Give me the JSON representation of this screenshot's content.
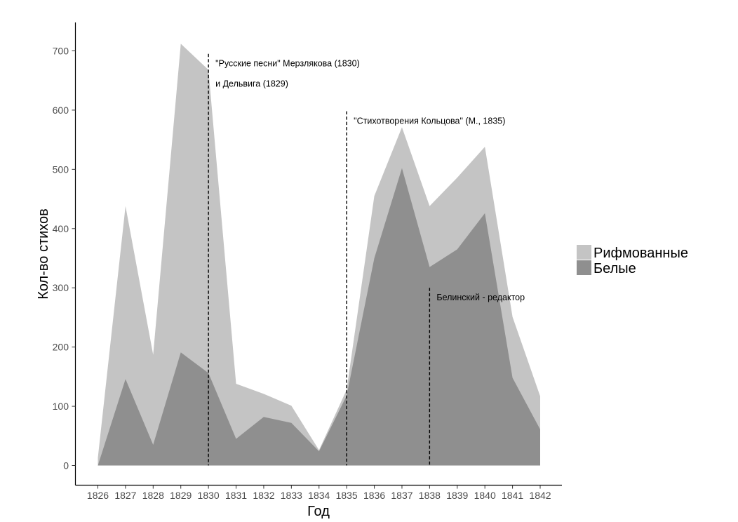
{
  "chart_data": {
    "type": "area",
    "xlabel": "Год",
    "ylabel": "Кол-во стихов",
    "x": [
      1826,
      1827,
      1828,
      1829,
      1830,
      1831,
      1832,
      1833,
      1834,
      1835,
      1836,
      1837,
      1838,
      1839,
      1840,
      1841,
      1842
    ],
    "xlim": [
      1826,
      1842
    ],
    "ylim": [
      0,
      700
    ],
    "yticks": [
      0,
      100,
      200,
      300,
      400,
      500,
      600,
      700
    ],
    "stacked": true,
    "grid": false,
    "legend_position": "right",
    "series": [
      {
        "name": "Рифмованные",
        "color": "#c4c4c4",
        "values": [
          13,
          292,
          152,
          521,
          512,
          93,
          39,
          29,
          2,
          10,
          105,
          69,
          103,
          121,
          112,
          103,
          56
        ]
      },
      {
        "name": "Белые",
        "color": "#8f8f8f",
        "values": [
          0,
          146,
          35,
          191,
          156,
          45,
          82,
          72,
          24,
          118,
          350,
          502,
          335,
          365,
          426,
          148,
          61
        ]
      }
    ],
    "annotations": [
      {
        "x": 1830,
        "y_top": 695,
        "lines": [
          "\"Русские песни\" Мерзлякова (1830)",
          "и Дельвига (1829)"
        ]
      },
      {
        "x": 1835,
        "y_top": 598,
        "lines": [
          "\"Стихотворения Кольцова\" (М., 1835)"
        ]
      },
      {
        "x": 1838,
        "y_top": 300,
        "lines": [
          "Белинский - редактор"
        ]
      }
    ]
  }
}
